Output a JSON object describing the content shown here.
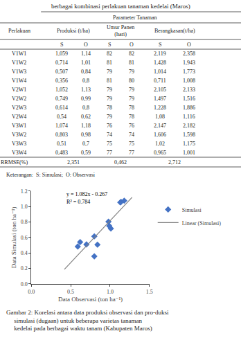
{
  "chart_data": [
    {
      "type": "table",
      "title": "berbagai kombinasi perlakuan tanaman kedelai (Maros)",
      "group_header": "Parameter Tanaman",
      "row_header": "Perlakuan",
      "categories": [
        "V1W1",
        "V1W2",
        "V1W3",
        "V1W4",
        "V2W1",
        "V2W2",
        "V2W3",
        "V2W4",
        "V3W1",
        "V3W2",
        "V3W3",
        "V3W4"
      ],
      "groups": [
        {
          "name": "Produksi (t/ha)",
          "series": [
            {
              "name": "S",
              "values": [
                1.059,
                0.714,
                0.507,
                0.356,
                1.052,
                0.749,
                0.614,
                0.54,
                1.074,
                0.803,
                0.51,
                0.483
              ],
              "value_labels": [
                "1,059",
                "0,714",
                "0,507",
                "0,356",
                "1,052",
                "0,749",
                "0,614",
                "0,54",
                "1,074",
                "0,803",
                "0,51",
                "0,483"
              ]
            },
            {
              "name": "O",
              "values": [
                1.14,
                1.01,
                0.84,
                0.8,
                1.13,
                0.99,
                0.8,
                0.62,
                1.18,
                0.98,
                0.7,
                0.59
              ],
              "value_labels": [
                "1,14",
                "1,01",
                "0,84",
                "0,8",
                "1,13",
                "0,99",
                "0,8",
                "0,62",
                "1,18",
                "0,98",
                "0,7",
                "0,59"
              ]
            }
          ],
          "rrmse": {
            "value": 2.351,
            "label": "2,351"
          }
        },
        {
          "name": "Umur Panen\n(hari)",
          "series": [
            {
              "name": "S",
              "values": [
                82,
                81,
                79,
                81,
                79,
                79,
                78,
                79,
                76,
                74,
                75,
                77
              ]
            },
            {
              "name": "O",
              "values": [
                82,
                81,
                79,
                80,
                79,
                79,
                78,
                78,
                76,
                74,
                75,
                77
              ]
            }
          ],
          "rrmse": {
            "value": 0.462,
            "label": "0,462"
          }
        },
        {
          "name": "Berangkasan(t/ha)",
          "series": [
            {
              "name": "S",
              "values": [
                2.119,
                1.428,
                1.014,
                0.711,
                2.105,
                1.497,
                1.228,
                1.08,
                2.147,
                1.606,
                1.02,
                0.965
              ],
              "value_labels": [
                "2,119",
                "1,428",
                "1,014",
                "0,711",
                "2,105",
                "1,497",
                "1,228",
                "1,08",
                "2,147",
                "1,606",
                "1,02",
                "0,965"
              ]
            },
            {
              "name": "O",
              "values": [
                2.358,
                1.943,
                1.773,
                1.008,
                2.133,
                1.516,
                1.886,
                1.116,
                2.182,
                1.598,
                1.175,
                1.001
              ],
              "value_labels": [
                "2,358",
                "1,943",
                "1,773",
                "1,008",
                "2,133",
                "1,516",
                "1,886",
                "1,116",
                "2,182",
                "1,598",
                "1,175",
                "1,001"
              ]
            }
          ],
          "rrmse": {
            "value": 2.712,
            "label": "2,712"
          }
        }
      ],
      "footer_label": "RRMSE(%)",
      "note": "Keterangan:  S: Simulasi;  O: Observasi"
    },
    {
      "type": "scatter",
      "xlabel": "Data Observasi (ton ha⁻¹)",
      "ylabel": "Data Simulasi (ton ha⁻¹)",
      "xlim": [
        0,
        1.5
      ],
      "ylim": [
        0,
        1.2
      ],
      "xticks": [
        {
          "value": 0,
          "label": "0.0"
        },
        0.5,
        {
          "value": 1,
          "label": "1.0"
        },
        1.5
      ],
      "yticks": [
        {
          "value": 0,
          "label": "0.0"
        },
        0.2,
        0.4,
        0.6,
        0.8,
        {
          "value": 1,
          "label": "1.0"
        },
        1.2
      ],
      "grid": false,
      "legend": "right",
      "series": [
        {
          "name": "Simulasi",
          "type": "scatter",
          "marker": "diamond",
          "color": "#4472C4",
          "x": [
            1.14,
            1.01,
            0.84,
            0.8,
            1.13,
            0.99,
            0.8,
            0.62,
            1.18,
            0.98,
            0.7,
            0.59
          ],
          "values": [
            1.059,
            0.714,
            0.507,
            0.356,
            1.052,
            0.749,
            0.614,
            0.54,
            1.074,
            0.803,
            0.51,
            0.483
          ]
        },
        {
          "name": "Linear (Simulasi)",
          "type": "line",
          "line_style": "solid",
          "color": "#808080",
          "x": [
            0.42,
            1.28
          ],
          "values": [
            0.18744,
            1.11796
          ]
        }
      ],
      "annotations": [
        {
          "text": "y = 1.082x - 0.267",
          "x": 0.43,
          "y": 1.1
        },
        {
          "text": "R² = 0.784",
          "x": 0.43,
          "y": 1
        }
      ],
      "caption": "Gambar 2: Korelasi antara data produksi observasi dan pro-duksi\n     simulasi (dugaan) untuk beberapa varietas tanaman\n     kedelai pada berbagai waktu tanam (Kabupaten Maros)"
    }
  ]
}
